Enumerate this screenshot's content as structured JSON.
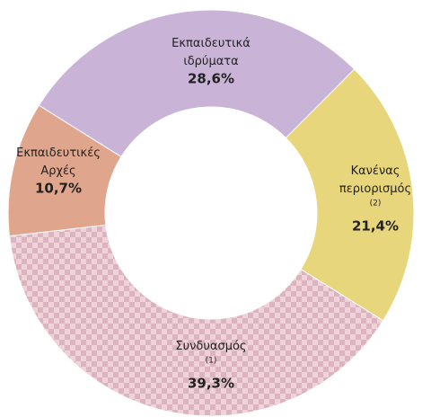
{
  "chart_data": {
    "type": "donut",
    "categories": [
      "Εκπαιδευτικά ιδρύματα",
      "Κανένας περιορισμός",
      "Συνδυασμός",
      "Εκπαιδευτικές Αρχές"
    ],
    "notes": [
      null,
      "(2)",
      "(1)",
      null
    ],
    "values": [
      28.6,
      21.4,
      39.3,
      10.7
    ],
    "value_labels": [
      "28,6%",
      "21,4%",
      "39,3%",
      "10,7%"
    ],
    "colors": [
      "#c9b4d7",
      "#e8d67c",
      "#e9c3cb",
      "#dfa68d"
    ],
    "patterned": [
      false,
      false,
      true,
      false
    ]
  }
}
